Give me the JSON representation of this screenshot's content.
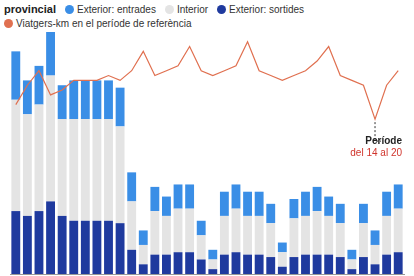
{
  "chart_data": {
    "type": "bar",
    "title": "provincial",
    "stacked": true,
    "tick_labels": false,
    "grid": false,
    "annotations": [
      "Període",
      "del 14 al 20"
    ],
    "categories": [
      null,
      null,
      null,
      null,
      null,
      null,
      null,
      null,
      null,
      null,
      null,
      null,
      null,
      null,
      null,
      null,
      null,
      null,
      null,
      null,
      null,
      null,
      null,
      null,
      null,
      null,
      null,
      null,
      null,
      null,
      null,
      null,
      null,
      null
    ],
    "ylim": [
      0,
      100
    ],
    "y2lim": [
      0,
      100
    ],
    "series": [
      {
        "name": "Exterior: entrades",
        "color": "#3a8ee6",
        "values": [
          20,
          14,
          16,
          18,
          14,
          16,
          16,
          16,
          16,
          16,
          12,
          6,
          10,
          8,
          10,
          10,
          6,
          4,
          10,
          10,
          10,
          10,
          8,
          4,
          8,
          10,
          10,
          8,
          8,
          4,
          8,
          6,
          10,
          10
        ]
      },
      {
        "name": "Interior",
        "color": "#e4e4e4",
        "values": [
          46,
          42,
          44,
          52,
          40,
          42,
          42,
          42,
          42,
          40,
          20,
          8,
          18,
          16,
          18,
          18,
          10,
          4,
          16,
          18,
          16,
          16,
          14,
          6,
          16,
          16,
          18,
          16,
          14,
          4,
          14,
          8,
          16,
          18
        ]
      },
      {
        "name": "Exterior: sortides",
        "color": "#1f3a9e",
        "values": [
          26,
          24,
          26,
          30,
          24,
          22,
          22,
          22,
          22,
          21,
          10,
          4,
          8,
          8,
          9,
          9,
          6,
          2,
          8,
          9,
          8,
          8,
          7,
          3,
          7,
          8,
          8,
          8,
          7,
          2,
          7,
          4,
          8,
          9
        ]
      },
      {
        "name": "Viatgers-km en el període de referència",
        "type": "line",
        "axis": "y2",
        "color": "#e07050",
        "values": [
          70,
          78,
          84,
          74,
          76,
          80,
          80,
          80,
          82,
          80,
          84,
          92,
          82,
          84,
          86,
          94,
          84,
          82,
          84,
          86,
          96,
          84,
          82,
          80,
          82,
          84,
          88,
          94,
          82,
          80,
          78,
          64,
          78,
          84
        ]
      }
    ]
  }
}
